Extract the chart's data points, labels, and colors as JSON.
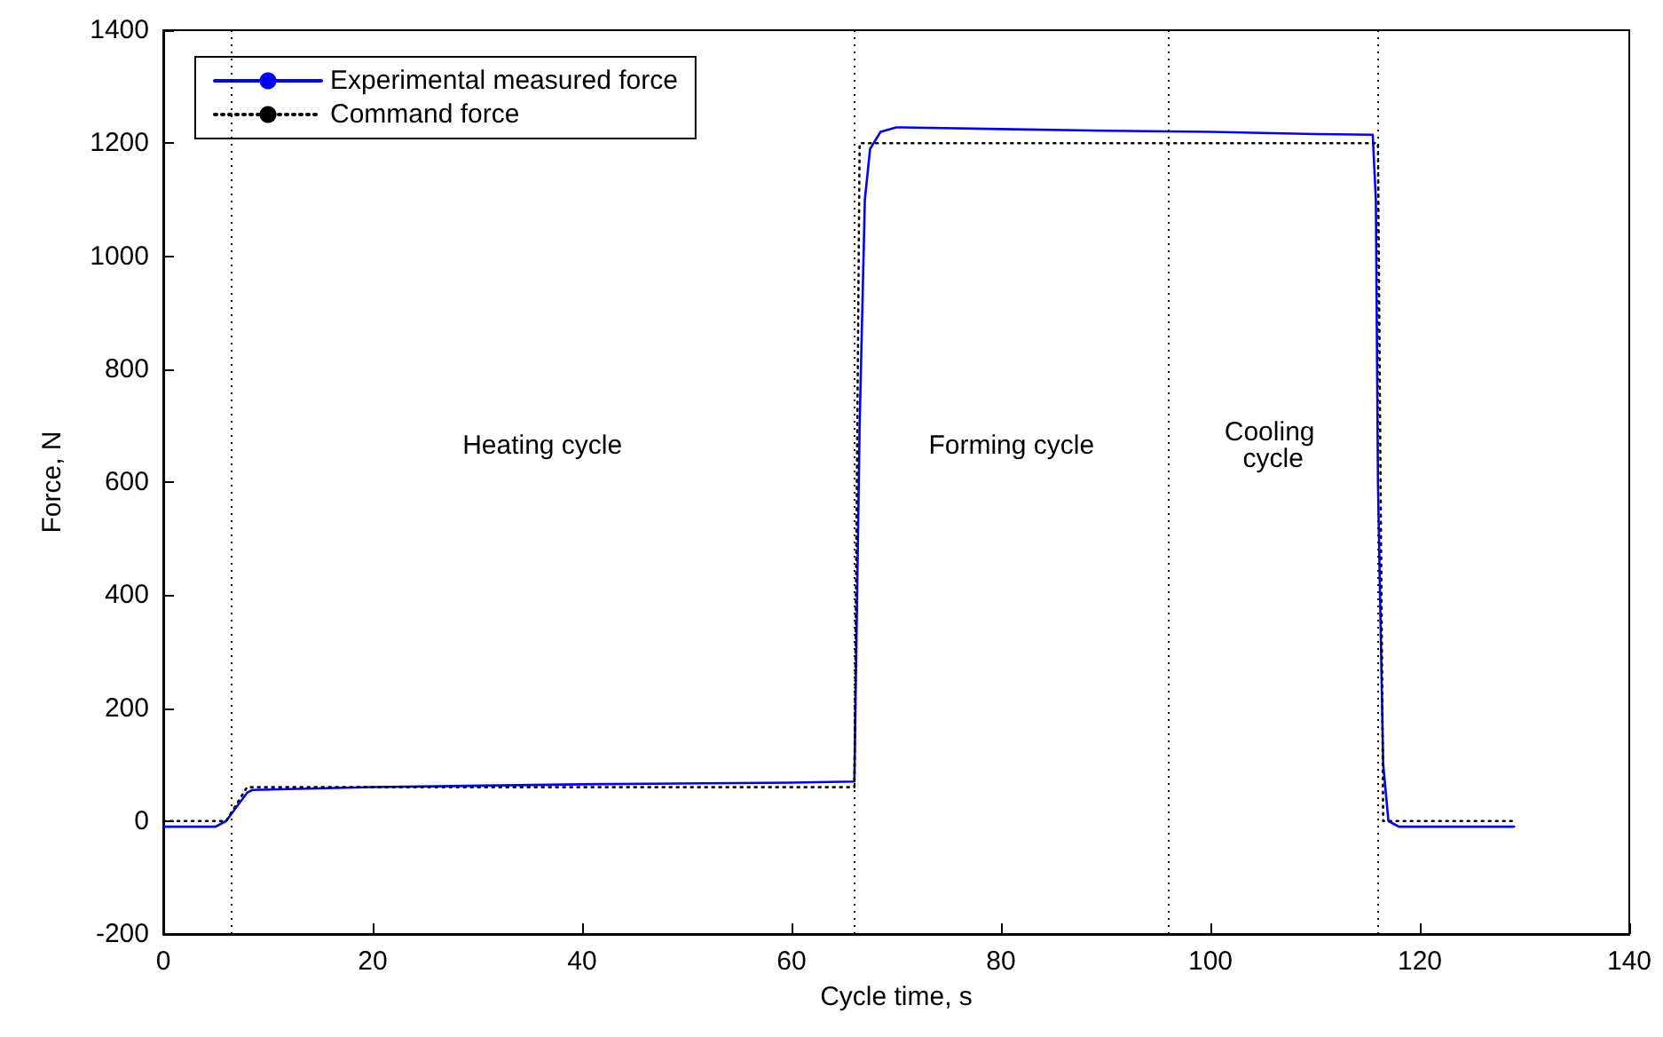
{
  "chart_data": {
    "type": "line",
    "xlabel": "Cycle time, s",
    "ylabel": "Force, N",
    "xlim": [
      0,
      140
    ],
    "xticks": [
      0,
      20,
      40,
      60,
      80,
      100,
      120,
      140
    ],
    "ylim": [
      -200,
      1400
    ],
    "yticks": [
      -200,
      0,
      200,
      400,
      600,
      800,
      1000,
      1200,
      1400
    ],
    "grid": false,
    "legend": "top left",
    "marker": "none",
    "series": [
      {
        "name": "Experimental measured force",
        "color": "#0000ff",
        "line_style": "solid",
        "x": [
          0,
          5,
          6,
          7,
          8,
          8.5,
          20,
          40,
          60,
          66,
          66.1,
          66.5,
          67,
          67.5,
          68.5,
          70,
          80,
          90,
          100,
          110,
          115.5,
          115.8,
          116,
          116.3,
          116.5,
          117,
          118,
          129
        ],
        "values": [
          -10,
          -10,
          0,
          25,
          50,
          55,
          60,
          65,
          68,
          70,
          200,
          700,
          1100,
          1190,
          1220,
          1228,
          1225,
          1222,
          1220,
          1216,
          1215,
          1100,
          600,
          300,
          100,
          0,
          -10,
          -10
        ]
      },
      {
        "name": "Command force",
        "color": "#000000",
        "line_style": "dotted",
        "x": [
          0,
          6,
          8,
          66,
          66.5,
          116,
          116.5,
          129
        ],
        "values": [
          0,
          0,
          60,
          60,
          1200,
          1200,
          0,
          0
        ]
      }
    ],
    "ref_lines": [
      {
        "axis": "x",
        "value": 6.4,
        "color": "#000000",
        "line_style": "dotted"
      },
      {
        "axis": "x",
        "value": 66,
        "color": "#000000",
        "line_style": "dotted"
      },
      {
        "axis": "x",
        "value": 96,
        "color": "#000000",
        "line_style": "dotted"
      },
      {
        "axis": "x",
        "value": 116,
        "color": "#000000",
        "line_style": "dotted"
      }
    ],
    "annotations": [
      "Heating cycle",
      "Forming cycle",
      "Cooling cycle"
    ]
  }
}
